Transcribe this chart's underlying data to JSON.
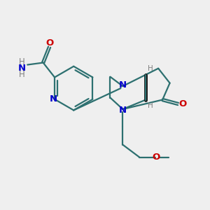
{
  "bg_color": "#efefef",
  "bond_color": "#2d7070",
  "N_color": "#0000cc",
  "O_color": "#cc0000",
  "H_color": "#808080",
  "line_width": 1.6,
  "figsize": [
    3.0,
    3.0
  ],
  "dpi": 100,
  "xlim": [
    0,
    10
  ],
  "ylim": [
    0,
    10
  ]
}
